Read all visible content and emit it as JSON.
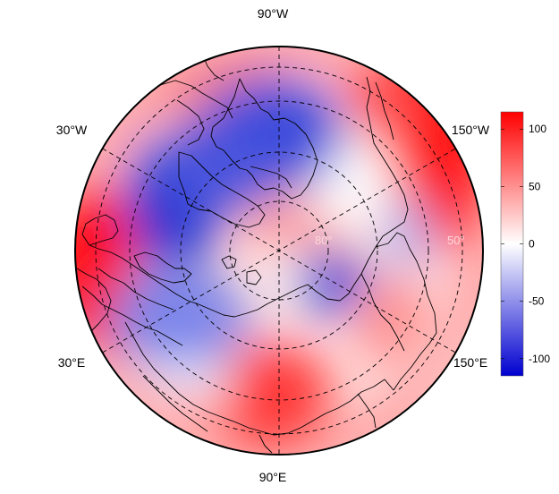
{
  "map": {
    "projection": "north polar stereographic",
    "longitude_labels": {
      "top": "90°W",
      "bottom": "90°E",
      "upper_left": "30°W",
      "upper_right": "150°W",
      "lower_left": "30°E",
      "lower_right": "150°E"
    },
    "latitude_labels": [
      "80°",
      "50°"
    ],
    "graticule": "dashed",
    "coastlines": true
  },
  "colorbar": {
    "colormap": "blue-white-red",
    "min": -115,
    "max": 115,
    "ticks": [
      {
        "value": 100,
        "label": "100"
      },
      {
        "value": 50,
        "label": "50"
      },
      {
        "value": 0,
        "label": "0"
      },
      {
        "value": -50,
        "label": "-50"
      },
      {
        "value": -100,
        "label": "-100"
      }
    ],
    "colors": {
      "low": "#0000d0",
      "mid": "#ffffff",
      "high": "#ff0000"
    }
  },
  "field_features": [
    {
      "region": "Greenland / Baffin Bay",
      "sign": "negative",
      "strength": "strong"
    },
    {
      "region": "Canadian Arctic Archipelago",
      "sign": "negative",
      "strength": "strong"
    },
    {
      "region": "Eastern Siberian coast",
      "sign": "negative",
      "strength": "moderate"
    },
    {
      "region": "Alaska / Bering",
      "sign": "positive",
      "strength": "strong"
    },
    {
      "region": "Western Europe",
      "sign": "positive",
      "strength": "strong"
    },
    {
      "region": "Central Asia",
      "sign": "positive",
      "strength": "moderate"
    },
    {
      "region": "Western Siberia / Urals",
      "sign": "negative",
      "strength": "moderate"
    }
  ]
}
